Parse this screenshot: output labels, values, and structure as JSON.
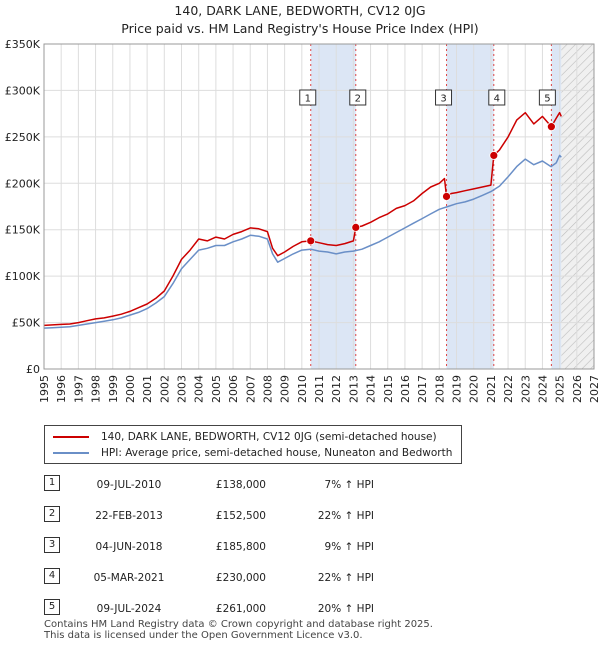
{
  "title_line1": "140, DARK LANE, BEDWORTH, CV12 0JG",
  "title_line2": "Price paid vs. HM Land Registry's House Price Index (HPI)",
  "colors": {
    "red": "#cc0000",
    "blue": "#6a8fc7",
    "highlight": "#dce6f5",
    "grid": "#dddddd"
  },
  "legend": {
    "red_label": "140, DARK LANE, BEDWORTH, CV12 0JG (semi-detached house)",
    "blue_label": "HPI: Average price, semi-detached house, Nuneaton and Bedworth"
  },
  "sales": [
    {
      "num": "1",
      "date": "09-JUL-2010",
      "price": "£138,000",
      "hpi": "7% ↑ HPI"
    },
    {
      "num": "2",
      "date": "22-FEB-2013",
      "price": "£152,500",
      "hpi": "22% ↑ HPI"
    },
    {
      "num": "3",
      "date": "04-JUN-2018",
      "price": "£185,800",
      "hpi": "9% ↑ HPI"
    },
    {
      "num": "4",
      "date": "05-MAR-2021",
      "price": "£230,000",
      "hpi": "22% ↑ HPI"
    },
    {
      "num": "5",
      "date": "09-JUL-2024",
      "price": "£261,000",
      "hpi": "20% ↑ HPI"
    }
  ],
  "footer_line1": "Contains HM Land Registry data © Crown copyright and database right 2025.",
  "footer_line2": "This data is licensed under the Open Government Licence v3.0.",
  "chart_data": {
    "type": "line",
    "title": "140, DARK LANE, BEDWORTH, CV12 0JG",
    "subtitle": "Price paid vs. HM Land Registry's House Price Index (HPI)",
    "xlim": [
      1995,
      2027
    ],
    "ylim": [
      0,
      350000
    ],
    "y_ticks": [
      0,
      50000,
      100000,
      150000,
      200000,
      250000,
      300000,
      350000
    ],
    "y_tick_labels": [
      "£0",
      "£50K",
      "£100K",
      "£150K",
      "£200K",
      "£250K",
      "£300K",
      "£350K"
    ],
    "x_ticks": [
      1995,
      1996,
      1997,
      1998,
      1999,
      2000,
      2001,
      2002,
      2003,
      2004,
      2005,
      2006,
      2007,
      2008,
      2009,
      2010,
      2011,
      2012,
      2013,
      2014,
      2015,
      2016,
      2017,
      2018,
      2019,
      2020,
      2021,
      2022,
      2023,
      2024,
      2025,
      2026,
      2027
    ],
    "grid": true,
    "shaded_spans": [
      [
        2010.52,
        2013.14
      ],
      [
        2018.42,
        2021.17
      ],
      [
        2024.52,
        2025.1
      ]
    ],
    "future_hatch_from": 2025.1,
    "sale_markers": [
      {
        "label": "1",
        "x": 2010.52,
        "y": 138000
      },
      {
        "label": "2",
        "x": 2013.14,
        "y": 152500
      },
      {
        "label": "3",
        "x": 2018.42,
        "y": 185800
      },
      {
        "label": "4",
        "x": 2021.17,
        "y": 230000
      },
      {
        "label": "5",
        "x": 2024.52,
        "y": 261000
      }
    ],
    "series": [
      {
        "name": "140, DARK LANE, BEDWORTH, CV12 0JG (semi-detached house)",
        "color": "#cc0000",
        "x": [
          1995.0,
          1995.5,
          1996.0,
          1996.5,
          1997.0,
          1997.5,
          1998.0,
          1998.5,
          1999.0,
          1999.5,
          2000.0,
          2000.5,
          2001.0,
          2001.5,
          2002.0,
          2002.5,
          2003.0,
          2003.5,
          2004.0,
          2004.5,
          2005.0,
          2005.5,
          2006.0,
          2006.5,
          2007.0,
          2007.5,
          2008.0,
          2008.3,
          2008.6,
          2009.0,
          2009.5,
          2010.0,
          2010.52,
          2011.0,
          2011.5,
          2012.0,
          2012.5,
          2013.0,
          2013.14,
          2013.5,
          2014.0,
          2014.5,
          2015.0,
          2015.5,
          2016.0,
          2016.5,
          2017.0,
          2017.5,
          2018.0,
          2018.3,
          2018.42,
          2018.7,
          2019.0,
          2019.5,
          2020.0,
          2020.5,
          2021.0,
          2021.17,
          2021.5,
          2022.0,
          2022.5,
          2023.0,
          2023.5,
          2024.0,
          2024.52,
          2024.8,
          2025.0,
          2025.1
        ],
        "y": [
          47000,
          47500,
          48000,
          48500,
          50000,
          52000,
          54000,
          55000,
          57000,
          59000,
          62000,
          66000,
          70000,
          76000,
          84000,
          100000,
          118000,
          128000,
          140000,
          138000,
          142000,
          140000,
          145000,
          148000,
          152000,
          151000,
          148000,
          130000,
          122000,
          126000,
          132000,
          137000,
          138000,
          136000,
          134000,
          133000,
          135000,
          138000,
          152500,
          154000,
          158000,
          163000,
          167000,
          173000,
          176000,
          181000,
          189000,
          196000,
          200000,
          205000,
          185800,
          189000,
          190000,
          192000,
          194000,
          196000,
          198000,
          230000,
          236000,
          250000,
          268000,
          276000,
          264000,
          272000,
          261000,
          270000,
          276000,
          272000
        ]
      },
      {
        "name": "HPI: Average price, semi-detached house, Nuneaton and Bedworth",
        "color": "#6a8fc7",
        "x": [
          1995.0,
          1995.5,
          1996.0,
          1996.5,
          1997.0,
          1997.5,
          1998.0,
          1998.5,
          1999.0,
          1999.5,
          2000.0,
          2000.5,
          2001.0,
          2001.5,
          2002.0,
          2002.5,
          2003.0,
          2003.5,
          2004.0,
          2004.5,
          2005.0,
          2005.5,
          2006.0,
          2006.5,
          2007.0,
          2007.5,
          2008.0,
          2008.3,
          2008.6,
          2009.0,
          2009.5,
          2010.0,
          2010.52,
          2011.0,
          2011.5,
          2012.0,
          2012.5,
          2013.0,
          2013.5,
          2014.0,
          2014.5,
          2015.0,
          2015.5,
          2016.0,
          2016.5,
          2017.0,
          2017.5,
          2018.0,
          2018.5,
          2019.0,
          2019.5,
          2020.0,
          2020.5,
          2021.0,
          2021.5,
          2022.0,
          2022.5,
          2023.0,
          2023.5,
          2024.0,
          2024.5,
          2024.8,
          2025.0,
          2025.1
        ],
        "y": [
          44000,
          44500,
          45000,
          45500,
          47000,
          48500,
          50000,
          51500,
          53000,
          55000,
          58000,
          61000,
          65000,
          71000,
          78000,
          92000,
          108000,
          118000,
          128000,
          130000,
          133000,
          133000,
          137000,
          140000,
          144000,
          143000,
          140000,
          124000,
          115000,
          119000,
          124000,
          128000,
          129000,
          127000,
          126000,
          124000,
          126000,
          127000,
          129000,
          133000,
          137000,
          142000,
          147000,
          152000,
          157000,
          162000,
          167000,
          172000,
          175000,
          178000,
          180000,
          183000,
          187000,
          191000,
          197000,
          207000,
          218000,
          226000,
          220000,
          224000,
          218000,
          222000,
          230000,
          228000
        ]
      }
    ]
  }
}
